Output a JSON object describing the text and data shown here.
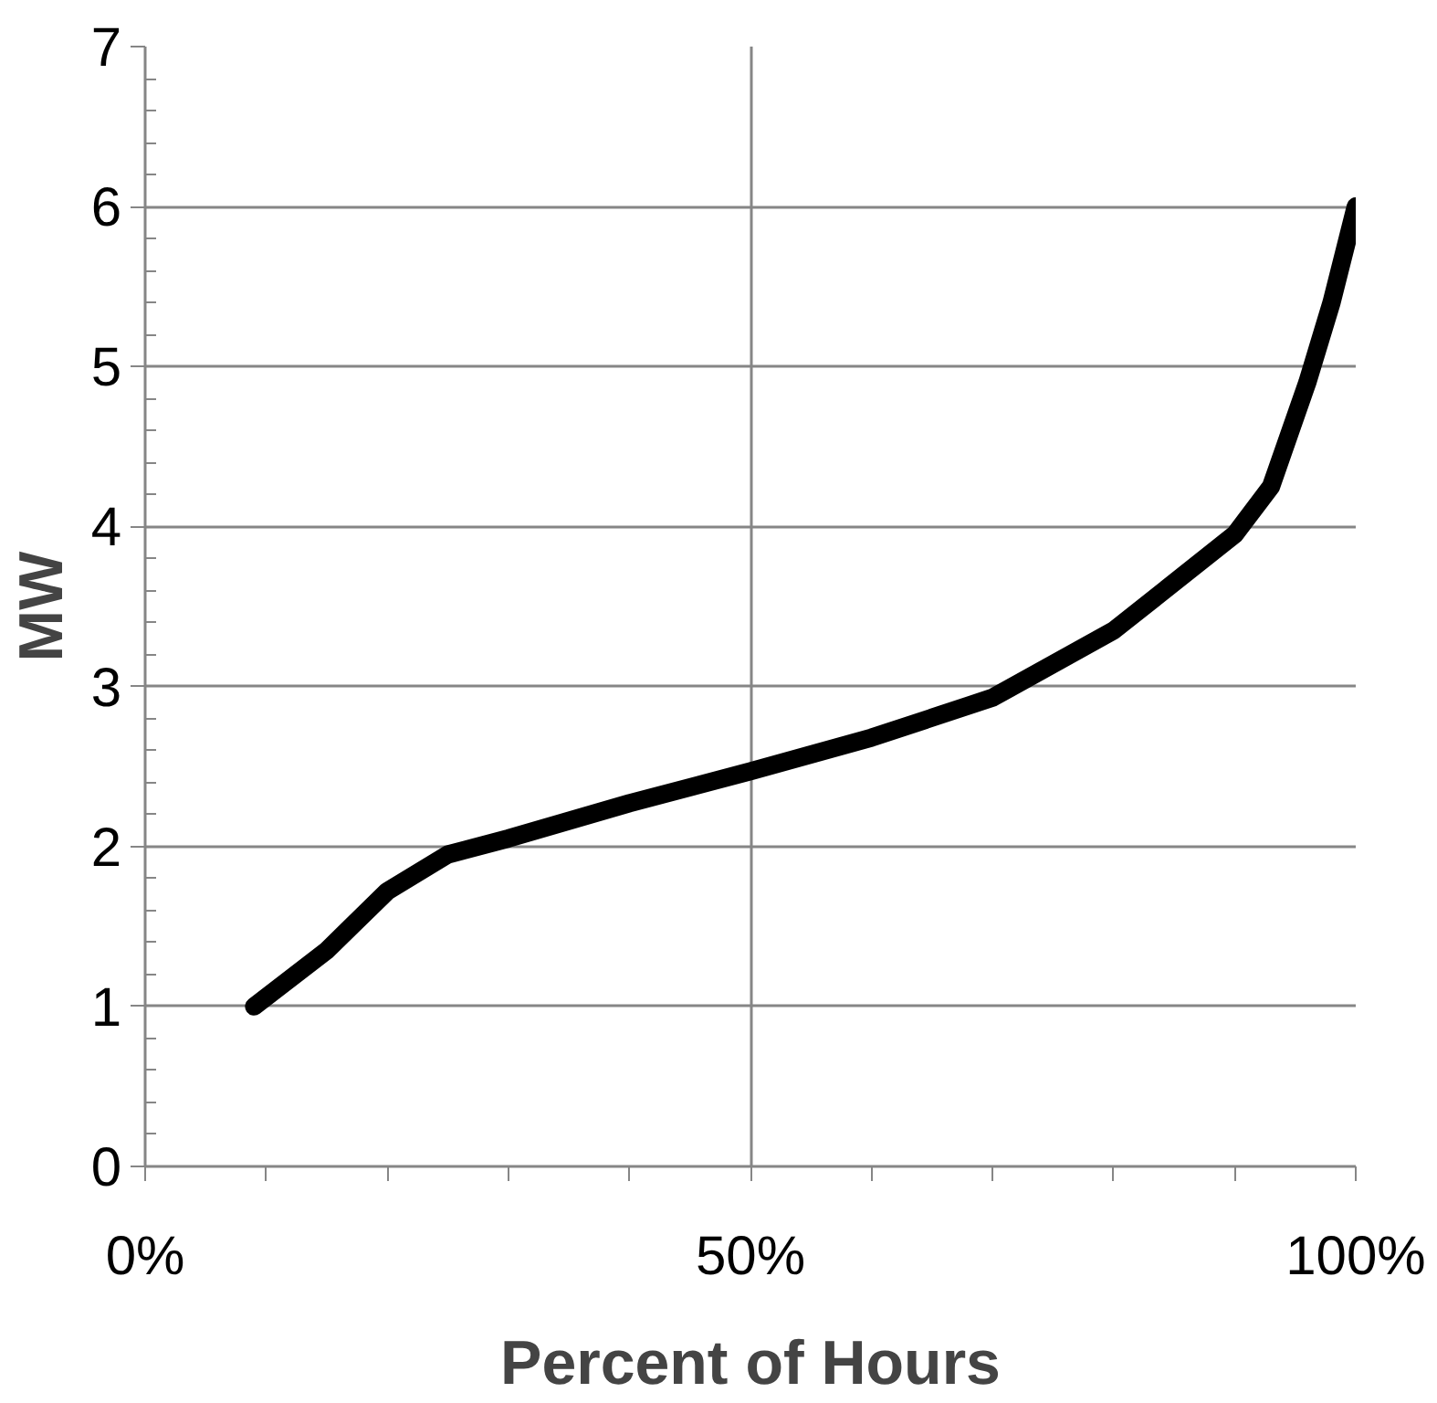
{
  "chart_data": {
    "type": "line",
    "xlabel": "Percent of Hours",
    "ylabel": "MW",
    "xlim": [
      0,
      1
    ],
    "ylim": [
      0,
      7
    ],
    "xticks": [
      {
        "value": 0,
        "label": "0%"
      },
      {
        "value": 0.1,
        "label": null
      },
      {
        "value": 0.2,
        "label": null
      },
      {
        "value": 0.3,
        "label": null
      },
      {
        "value": 0.4,
        "label": null
      },
      {
        "value": 0.5,
        "label": "50%"
      },
      {
        "value": 0.6,
        "label": null
      },
      {
        "value": 0.7,
        "label": null
      },
      {
        "value": 0.8,
        "label": null
      },
      {
        "value": 0.9,
        "label": null
      },
      {
        "value": 1,
        "label": "100%"
      }
    ],
    "yticks": [
      0,
      {
        "value": 0.2,
        "label": null
      },
      {
        "value": 0.4,
        "label": null
      },
      {
        "value": 0.6,
        "label": null
      },
      {
        "value": 0.8,
        "label": null
      },
      1,
      {
        "value": 1.2,
        "label": null
      },
      {
        "value": 1.4,
        "label": null
      },
      {
        "value": 1.6,
        "label": null
      },
      {
        "value": 1.8,
        "label": null
      },
      2,
      {
        "value": 2.2,
        "label": null
      },
      {
        "value": 2.4,
        "label": null
      },
      {
        "value": 2.6,
        "label": null
      },
      {
        "value": 2.8,
        "label": null
      },
      3,
      {
        "value": 3.2,
        "label": null
      },
      {
        "value": 3.4,
        "label": null
      },
      {
        "value": 3.6,
        "label": null
      },
      {
        "value": 3.8,
        "label": null
      },
      4,
      {
        "value": 4.2,
        "label": null
      },
      {
        "value": 4.4,
        "label": null
      },
      {
        "value": 4.6,
        "label": null
      },
      {
        "value": 4.8,
        "label": null
      },
      5,
      {
        "value": 5.2,
        "label": null
      },
      {
        "value": 5.4,
        "label": null
      },
      {
        "value": 5.6,
        "label": null
      },
      {
        "value": 5.8,
        "label": null
      },
      6,
      {
        "value": 6.2,
        "label": null
      },
      {
        "value": 6.4,
        "label": null
      },
      {
        "value": 6.6,
        "label": null
      },
      {
        "value": 6.8,
        "label": null
      },
      7
    ],
    "grid": true,
    "marker": "none",
    "line_style": "solid",
    "x": [
      0.09,
      0.15,
      0.2,
      0.25,
      0.3,
      0.4,
      0.5,
      0.6,
      0.7,
      0.8,
      0.9,
      0.93,
      0.96,
      0.98,
      1.0
    ],
    "series": [
      {
        "color": "#000000",
        "values": [
          1.0,
          1.35,
          1.72,
          1.95,
          2.05,
          2.27,
          2.47,
          2.68,
          2.93,
          3.35,
          3.95,
          4.25,
          4.9,
          5.4,
          6.0
        ]
      }
    ]
  }
}
